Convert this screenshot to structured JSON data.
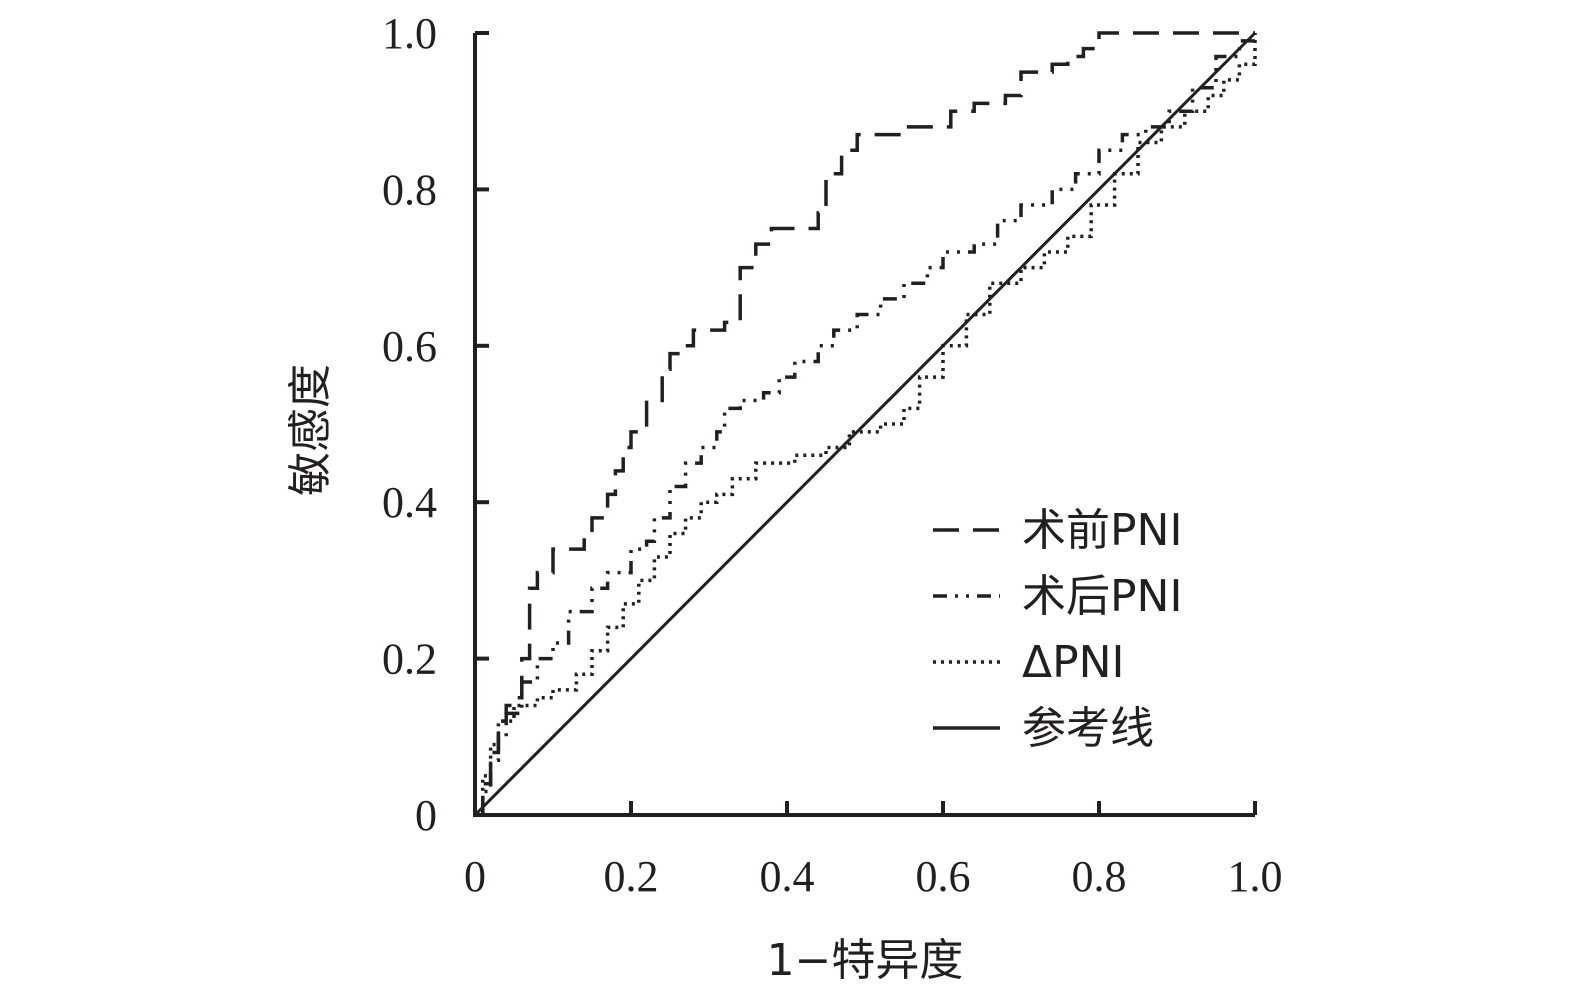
{
  "chart_data": {
    "type": "line",
    "title": "",
    "xlabel": "1−特异度",
    "ylabel": "敏感度",
    "xlim": [
      0,
      1
    ],
    "ylim": [
      0,
      1
    ],
    "x_ticks": [
      {
        "value": 0,
        "label": "0"
      },
      {
        "value": 0.2,
        "label": "0.2"
      },
      {
        "value": 0.4,
        "label": "0.4"
      },
      {
        "value": 0.6,
        "label": "0.6"
      },
      {
        "value": 0.8,
        "label": "0.8"
      },
      {
        "value": 1.0,
        "label": "1.0"
      }
    ],
    "y_ticks": [
      {
        "value": 0,
        "label": "0"
      },
      {
        "value": 0.2,
        "label": "0.2"
      },
      {
        "value": 0.4,
        "label": "0.4"
      },
      {
        "value": 0.6,
        "label": "0.6"
      },
      {
        "value": 0.8,
        "label": "0.8"
      },
      {
        "value": 1.0,
        "label": "1.0"
      }
    ],
    "grid": false,
    "legend_position": "bottom-right",
    "line_color": "#231f20",
    "series": [
      {
        "name": "术前PNI",
        "dash": "long-dash",
        "points": [
          [
            0,
            0
          ],
          [
            0.01,
            0.04
          ],
          [
            0.02,
            0.08
          ],
          [
            0.03,
            0.12
          ],
          [
            0.04,
            0.14
          ],
          [
            0.05,
            0.15
          ],
          [
            0.06,
            0.2
          ],
          [
            0.07,
            0.29
          ],
          [
            0.08,
            0.31
          ],
          [
            0.1,
            0.34
          ],
          [
            0.13,
            0.34
          ],
          [
            0.14,
            0.36
          ],
          [
            0.15,
            0.38
          ],
          [
            0.17,
            0.41
          ],
          [
            0.18,
            0.44
          ],
          [
            0.19,
            0.47
          ],
          [
            0.2,
            0.49
          ],
          [
            0.22,
            0.53
          ],
          [
            0.24,
            0.57
          ],
          [
            0.25,
            0.59
          ],
          [
            0.27,
            0.6
          ],
          [
            0.28,
            0.62
          ],
          [
            0.31,
            0.62
          ],
          [
            0.32,
            0.63
          ],
          [
            0.34,
            0.7
          ],
          [
            0.36,
            0.73
          ],
          [
            0.38,
            0.75
          ],
          [
            0.42,
            0.75
          ],
          [
            0.44,
            0.77
          ],
          [
            0.45,
            0.82
          ],
          [
            0.47,
            0.85
          ],
          [
            0.49,
            0.87
          ],
          [
            0.53,
            0.87
          ],
          [
            0.55,
            0.88
          ],
          [
            0.59,
            0.88
          ],
          [
            0.61,
            0.9
          ],
          [
            0.64,
            0.91
          ],
          [
            0.68,
            0.92
          ],
          [
            0.7,
            0.95
          ],
          [
            0.74,
            0.96
          ],
          [
            0.76,
            0.97
          ],
          [
            0.78,
            0.98
          ],
          [
            0.8,
            1.0
          ],
          [
            1.0,
            1.0
          ]
        ]
      },
      {
        "name": "术后PNI",
        "dash": "dash-dot-dot",
        "points": [
          [
            0,
            0
          ],
          [
            0.01,
            0.03
          ],
          [
            0.02,
            0.07
          ],
          [
            0.03,
            0.1
          ],
          [
            0.04,
            0.13
          ],
          [
            0.06,
            0.17
          ],
          [
            0.08,
            0.2
          ],
          [
            0.1,
            0.22
          ],
          [
            0.12,
            0.26
          ],
          [
            0.15,
            0.29
          ],
          [
            0.17,
            0.31
          ],
          [
            0.2,
            0.34
          ],
          [
            0.22,
            0.35
          ],
          [
            0.23,
            0.38
          ],
          [
            0.25,
            0.42
          ],
          [
            0.27,
            0.45
          ],
          [
            0.29,
            0.47
          ],
          [
            0.31,
            0.49
          ],
          [
            0.32,
            0.52
          ],
          [
            0.34,
            0.53
          ],
          [
            0.37,
            0.54
          ],
          [
            0.39,
            0.56
          ],
          [
            0.41,
            0.58
          ],
          [
            0.44,
            0.6
          ],
          [
            0.46,
            0.62
          ],
          [
            0.49,
            0.64
          ],
          [
            0.52,
            0.66
          ],
          [
            0.55,
            0.68
          ],
          [
            0.58,
            0.7
          ],
          [
            0.6,
            0.72
          ],
          [
            0.64,
            0.73
          ],
          [
            0.67,
            0.76
          ],
          [
            0.7,
            0.78
          ],
          [
            0.74,
            0.8
          ],
          [
            0.77,
            0.82
          ],
          [
            0.8,
            0.85
          ],
          [
            0.83,
            0.87
          ],
          [
            0.86,
            0.88
          ],
          [
            0.89,
            0.9
          ],
          [
            0.92,
            0.93
          ],
          [
            0.95,
            0.97
          ],
          [
            0.98,
            0.99
          ],
          [
            1.0,
            1.0
          ]
        ]
      },
      {
        "name": "ΔPNI",
        "dash": "dotted",
        "points": [
          [
            0,
            0
          ],
          [
            0.01,
            0.05
          ],
          [
            0.02,
            0.09
          ],
          [
            0.03,
            0.12
          ],
          [
            0.05,
            0.14
          ],
          [
            0.08,
            0.15
          ],
          [
            0.1,
            0.16
          ],
          [
            0.13,
            0.18
          ],
          [
            0.15,
            0.21
          ],
          [
            0.17,
            0.24
          ],
          [
            0.19,
            0.27
          ],
          [
            0.21,
            0.3
          ],
          [
            0.23,
            0.33
          ],
          [
            0.25,
            0.36
          ],
          [
            0.27,
            0.38
          ],
          [
            0.29,
            0.4
          ],
          [
            0.31,
            0.41
          ],
          [
            0.33,
            0.43
          ],
          [
            0.36,
            0.45
          ],
          [
            0.41,
            0.46
          ],
          [
            0.45,
            0.47
          ],
          [
            0.48,
            0.49
          ],
          [
            0.52,
            0.5
          ],
          [
            0.55,
            0.52
          ],
          [
            0.57,
            0.56
          ],
          [
            0.6,
            0.6
          ],
          [
            0.63,
            0.64
          ],
          [
            0.66,
            0.68
          ],
          [
            0.7,
            0.7
          ],
          [
            0.73,
            0.72
          ],
          [
            0.76,
            0.74
          ],
          [
            0.79,
            0.78
          ],
          [
            0.82,
            0.82
          ],
          [
            0.85,
            0.86
          ],
          [
            0.88,
            0.88
          ],
          [
            0.91,
            0.9
          ],
          [
            0.94,
            0.92
          ],
          [
            0.96,
            0.94
          ],
          [
            0.98,
            0.96
          ],
          [
            1.0,
            1.0
          ]
        ]
      },
      {
        "name": "参考线",
        "dash": "solid",
        "points": [
          [
            0,
            0
          ],
          [
            1,
            1
          ]
        ]
      }
    ]
  }
}
